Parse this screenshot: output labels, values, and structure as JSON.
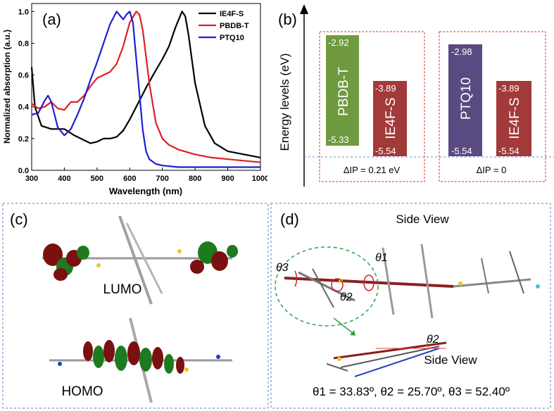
{
  "panel_a": {
    "label": "(a)",
    "ylabel": "Normalized absorption (a.u.)",
    "xlabel": "Wavelength (nm)",
    "x_ticks": [
      "300",
      "400",
      "500",
      "600",
      "700",
      "800",
      "900",
      "1000"
    ],
    "y_ticks": [
      "0.0",
      "0.2",
      "0.4",
      "0.6",
      "0.8",
      "1.0"
    ],
    "legend": [
      {
        "name": "IE4F-S",
        "color": "#000000"
      },
      {
        "name": "PBDB-T",
        "color": "#e02020"
      },
      {
        "name": "PTQ10",
        "color": "#1f1fd0"
      }
    ]
  },
  "panel_b": {
    "label": "(b)",
    "ylabel": "Energy levels (eV)",
    "bars": [
      {
        "name": "PBDB-T",
        "top": "-2.92",
        "bottom": "-5.33",
        "color": "#6f9a3f"
      },
      {
        "name": "IE4F-S",
        "top": "-3.89",
        "bottom": "-5.54",
        "color": "#a23a3a"
      },
      {
        "name": "PTQ10",
        "top": "-2.98",
        "bottom": "-5.54",
        "color": "#5a4a82"
      },
      {
        "name": "IE4F-S",
        "top": "-3.89",
        "bottom": "-5.54",
        "color": "#a23a3a"
      }
    ],
    "delta_left": "ΔIP = 0.21 eV",
    "delta_right": "ΔIP = 0"
  },
  "panel_c": {
    "label": "(c)",
    "lumo": "LUMO",
    "homo": "HOMO"
  },
  "panel_d": {
    "label": "(d)",
    "side_view_top": "Side View",
    "side_view_bottom": "Side View",
    "theta1": "θ1",
    "theta2": "θ2",
    "theta3": "θ3",
    "angles": "θ1 = 33.83º, θ2 = 25.70º, θ3 = 52.40º"
  },
  "chart_data": [
    {
      "type": "line",
      "xlabel": "Wavelength (nm)",
      "ylabel": "Normalized absorption (a.u.)",
      "xlim": [
        300,
        1000
      ],
      "ylim": [
        0,
        1.05
      ],
      "series": [
        {
          "name": "IE4F-S",
          "color": "#000000",
          "x": [
            300,
            310,
            330,
            360,
            400,
            430,
            460,
            480,
            500,
            520,
            540,
            560,
            580,
            600,
            620,
            650,
            680,
            700,
            720,
            740,
            760,
            770,
            780,
            800,
            830,
            860,
            900,
            950,
            1000
          ],
          "y": [
            0.65,
            0.4,
            0.28,
            0.26,
            0.26,
            0.22,
            0.19,
            0.17,
            0.18,
            0.2,
            0.2,
            0.21,
            0.25,
            0.32,
            0.4,
            0.52,
            0.63,
            0.7,
            0.78,
            0.9,
            1.0,
            0.97,
            0.85,
            0.55,
            0.28,
            0.17,
            0.12,
            0.1,
            0.08
          ]
        },
        {
          "name": "PBDB-T",
          "color": "#e02020",
          "x": [
            300,
            320,
            340,
            360,
            380,
            400,
            420,
            440,
            460,
            480,
            500,
            520,
            540,
            560,
            580,
            600,
            620,
            630,
            640,
            660,
            680,
            700,
            720,
            750,
            800,
            850,
            900,
            1000
          ],
          "y": [
            0.42,
            0.39,
            0.4,
            0.43,
            0.39,
            0.38,
            0.43,
            0.43,
            0.47,
            0.53,
            0.58,
            0.6,
            0.62,
            0.67,
            0.78,
            0.93,
            1.0,
            0.98,
            0.88,
            0.55,
            0.3,
            0.2,
            0.16,
            0.13,
            0.1,
            0.08,
            0.07,
            0.05
          ]
        },
        {
          "name": "PTQ10",
          "color": "#1f1fd0",
          "x": [
            300,
            320,
            340,
            350,
            360,
            380,
            400,
            420,
            440,
            460,
            480,
            500,
            520,
            540,
            560,
            580,
            590,
            600,
            610,
            620,
            640,
            650,
            660,
            680,
            700,
            750,
            800,
            1000
          ],
          "y": [
            0.35,
            0.36,
            0.44,
            0.47,
            0.43,
            0.27,
            0.22,
            0.26,
            0.35,
            0.45,
            0.57,
            0.68,
            0.8,
            0.92,
            1.0,
            0.95,
            0.98,
            1.0,
            0.93,
            0.7,
            0.25,
            0.12,
            0.07,
            0.04,
            0.03,
            0.02,
            0.02,
            0.02
          ]
        }
      ]
    }
  ]
}
